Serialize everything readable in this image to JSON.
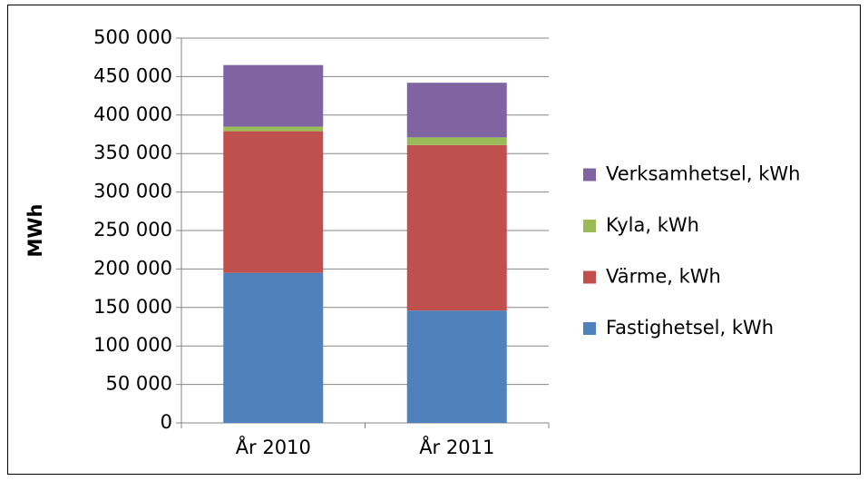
{
  "chart_data": {
    "type": "stacked_bar",
    "y_label": "MWh",
    "categories": [
      "År 2010",
      "År 2011"
    ],
    "series": [
      {
        "name": "Fastighetsel, kWh",
        "color": "#4f81bd",
        "values": [
          195000,
          146000
        ]
      },
      {
        "name": "Värme, kWh",
        "color": "#c0504d",
        "values": [
          184000,
          215000
        ]
      },
      {
        "name": "Kyla, kWh",
        "color": "#9bbb59",
        "values": [
          6000,
          10000
        ]
      },
      {
        "name": "Verksamhetsel, kWh",
        "color": "#8064a2",
        "values": [
          80000,
          71000
        ]
      }
    ],
    "ylim": [
      0,
      500000
    ],
    "yticks": [
      0,
      {
        "value": 50000,
        "label": "50 000"
      },
      {
        "value": 100000,
        "label": "100 000"
      },
      {
        "value": 150000,
        "label": "150 000"
      },
      {
        "value": 200000,
        "label": "200 000"
      },
      {
        "value": 250000,
        "label": "250 000"
      },
      {
        "value": 300000,
        "label": "300 000"
      },
      {
        "value": 350000,
        "label": "350 000"
      },
      {
        "value": 400000,
        "label": "400 000"
      },
      {
        "value": 450000,
        "label": "450 000"
      },
      {
        "value": 500000,
        "label": "500 000"
      }
    ],
    "grid": true,
    "legend": "right"
  }
}
